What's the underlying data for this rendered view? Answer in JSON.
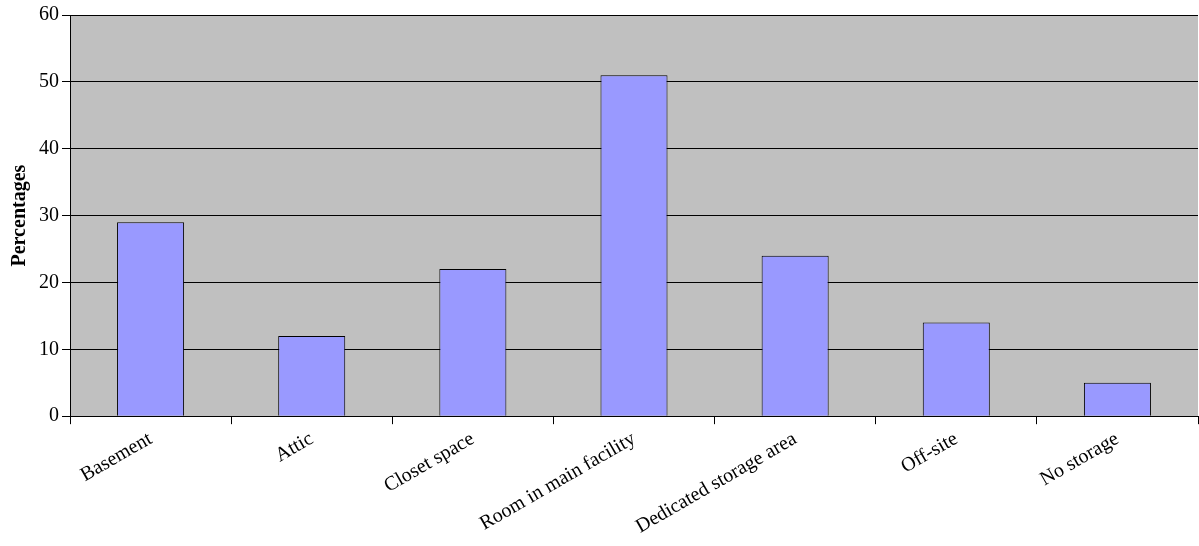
{
  "chart_data": {
    "type": "bar",
    "ylabel": "Percentages",
    "categories": [
      "Basement",
      "Attic",
      "Closet space",
      "Room in main facility",
      "Dedicated storage area",
      "Off-site",
      "No storage"
    ],
    "values": [
      29,
      12,
      22,
      51,
      24,
      14,
      5
    ],
    "color": "#9999ff",
    "ylim": [
      0,
      60
    ],
    "yticks": [
      0,
      10,
      20,
      30,
      40,
      50,
      60
    ],
    "grid": "y",
    "legend": false
  }
}
